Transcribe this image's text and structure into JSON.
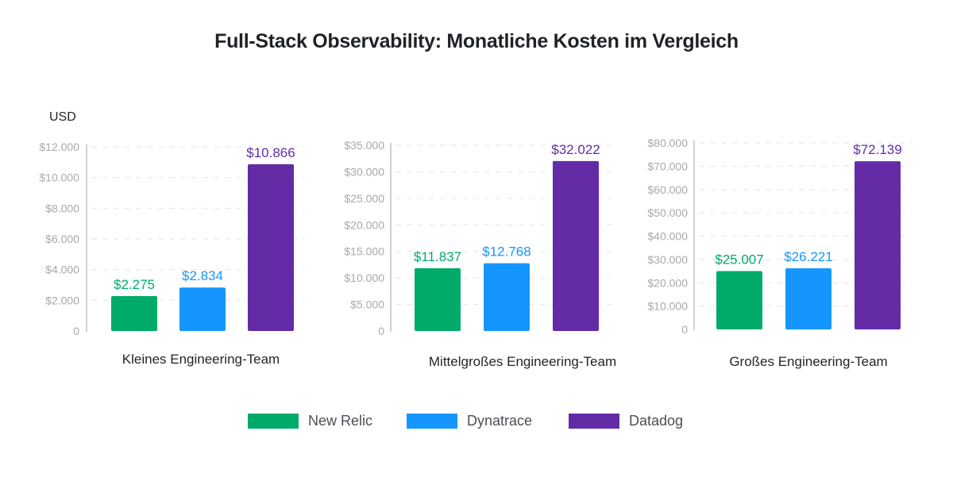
{
  "title": "Full-Stack Observability: Monatliche Kosten im Vergleich",
  "unit_label": "USD",
  "colors": {
    "New Relic": "#00ab69",
    "Dynatrace": "#1596ff",
    "Datadog": "#632ca6"
  },
  "legend": [
    {
      "name": "New Relic",
      "color": "#00ab69"
    },
    {
      "name": "Dynatrace",
      "color": "#1596ff"
    },
    {
      "name": "Datadog",
      "color": "#632ca6"
    }
  ],
  "chart_data": [
    {
      "type": "bar",
      "title": "Kleines Engineering-Team",
      "categories": [
        "New Relic",
        "Dynatrace",
        "Datadog"
      ],
      "values": [
        2275,
        2834,
        10866
      ],
      "value_labels": [
        "$2.275",
        "$2.834",
        "$10.866"
      ],
      "ylabel": "USD",
      "ylim": [
        0,
        12000
      ],
      "yticks": [
        0,
        2000,
        4000,
        6000,
        8000,
        10000,
        12000
      ],
      "ytick_labels": [
        "0",
        "$2.000",
        "$4.000",
        "$6.000",
        "$8.000",
        "$10.000",
        "$12.000"
      ],
      "grid": true,
      "legend": "bottom"
    },
    {
      "type": "bar",
      "title": "Mittelgroßes Engineering-Team",
      "categories": [
        "New Relic",
        "Dynatrace",
        "Datadog"
      ],
      "values": [
        11837,
        12768,
        32022
      ],
      "value_labels": [
        "$11.837",
        "$12.768",
        "$32.022"
      ],
      "ylabel": "USD",
      "ylim": [
        0,
        35000
      ],
      "yticks": [
        0,
        5000,
        10000,
        15000,
        20000,
        25000,
        30000,
        35000
      ],
      "ytick_labels": [
        "0",
        "$5.000",
        "$10.000",
        "$15.000",
        "$20.000",
        "$25.000",
        "$30.000",
        "$35.000"
      ],
      "grid": true,
      "legend": "bottom"
    },
    {
      "type": "bar",
      "title": "Großes Engineering-Team",
      "categories": [
        "New Relic",
        "Dynatrace",
        "Datadog"
      ],
      "values": [
        25007,
        26221,
        72139
      ],
      "value_labels": [
        "$25.007",
        "$26.221",
        "$72.139"
      ],
      "ylabel": "USD",
      "ylim": [
        0,
        80000
      ],
      "yticks": [
        0,
        10000,
        20000,
        30000,
        40000,
        50000,
        60000,
        70000,
        80000
      ],
      "ytick_labels": [
        "0",
        "$10.000",
        "$20.000",
        "$30.000",
        "$40.000",
        "$50.000",
        "$60.000",
        "$70.000",
        "$80.000"
      ],
      "grid": true,
      "legend": "bottom"
    }
  ]
}
